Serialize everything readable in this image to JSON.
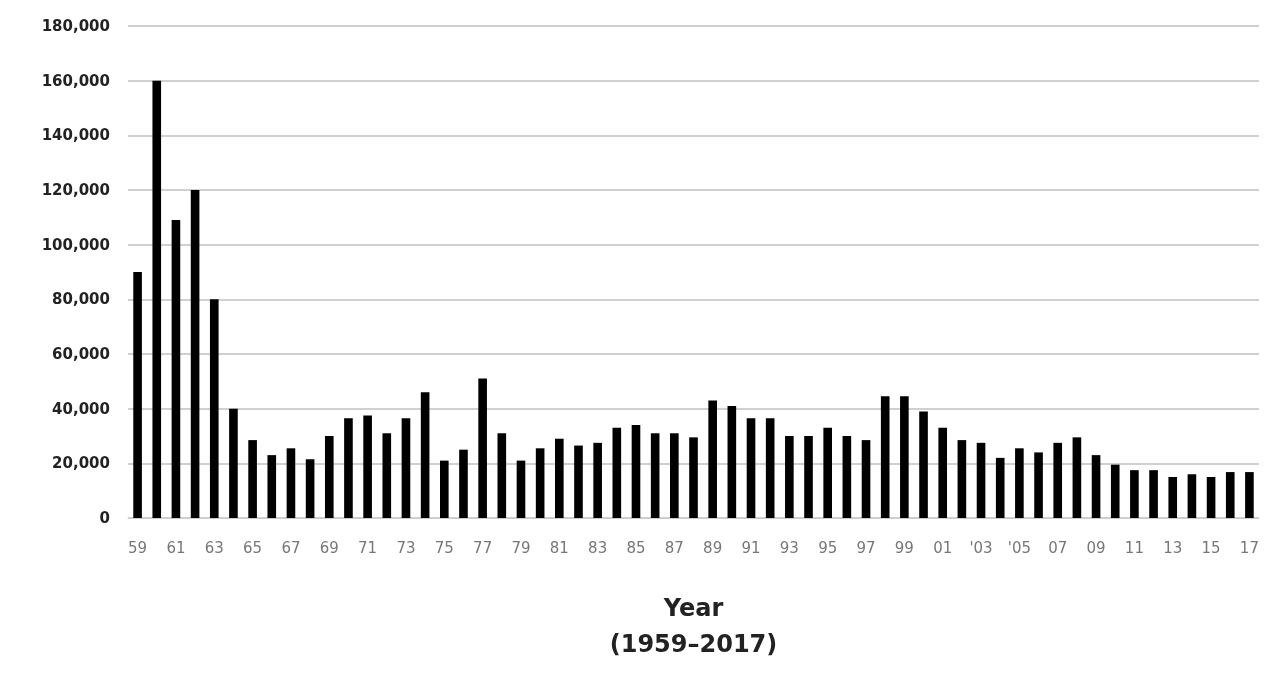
{
  "chart_data": {
    "type": "bar",
    "xlabel": "Year\n(1959–2017)",
    "categories": [
      "59",
      null,
      "61",
      null,
      "63",
      null,
      "65",
      null,
      "67",
      null,
      "69",
      null,
      "71",
      null,
      "73",
      null,
      "75",
      null,
      "77",
      null,
      "79",
      null,
      "81",
      null,
      "83",
      null,
      "85",
      null,
      "87",
      null,
      "89",
      null,
      "91",
      null,
      "93",
      null,
      "95",
      null,
      "97",
      null,
      "99",
      null,
      "01",
      null,
      "'03",
      null,
      "'05",
      null,
      "07",
      null,
      "09",
      null,
      "11",
      null,
      "13",
      null,
      "15",
      null,
      "17"
    ],
    "values": [
      90000,
      160000,
      109000,
      120000,
      80000,
      40000,
      28500,
      23000,
      25500,
      21500,
      30000,
      36500,
      37500,
      31000,
      36500,
      46000,
      21000,
      25000,
      51000,
      31000,
      21000,
      25500,
      29000,
      26500,
      27500,
      33000,
      34000,
      31000,
      31000,
      29500,
      43000,
      41000,
      36500,
      36500,
      30000,
      30000,
      33000,
      30000,
      28500,
      44500,
      44500,
      39000,
      33000,
      28500,
      27500,
      22000,
      25500,
      24000,
      27500,
      29500,
      23000,
      19500,
      17500,
      17500,
      15000,
      16000,
      15000,
      16800,
      16800
    ],
    "color": "#000000",
    "ylim": [
      0,
      180000
    ],
    "yticks": [
      0,
      {
        "value": 20000,
        "label": "20,000"
      },
      {
        "value": 40000,
        "label": "40,000"
      },
      {
        "value": 60000,
        "label": "60,000"
      },
      {
        "value": 80000,
        "label": "80,000"
      },
      {
        "value": 100000,
        "label": "100,000"
      },
      {
        "value": 120000,
        "label": "120,000"
      },
      {
        "value": 140000,
        "label": "140,000"
      },
      {
        "value": 160000,
        "label": "160,000"
      },
      {
        "value": 180000,
        "label": "180,000"
      }
    ],
    "grid": "y"
  }
}
